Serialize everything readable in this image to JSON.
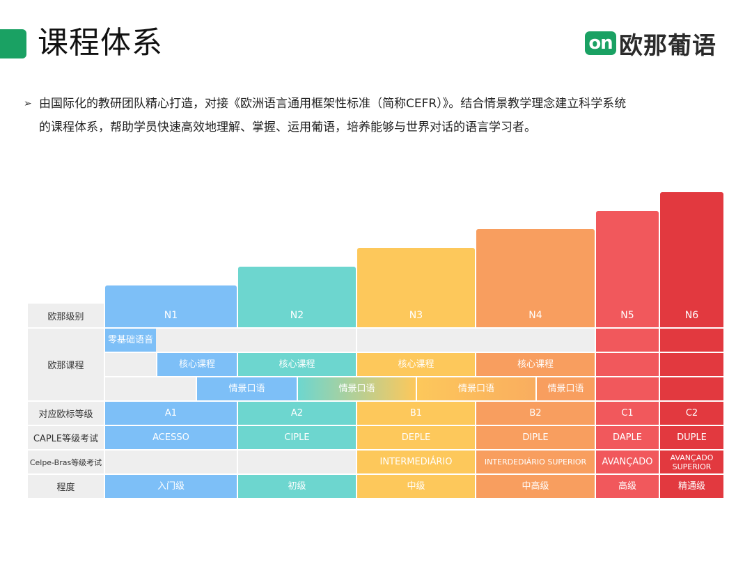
{
  "header": {
    "title": "课程体系",
    "logo_mark": "on",
    "logo_text": "欧那葡语"
  },
  "intro": {
    "arrow": "➢",
    "line1": "由国际化的教研团队精心打造，对接《欧洲语言通用框架性标准（简称CEFR）》。结合情景教学理念建立科学系统",
    "line2": "的课程体系，帮助学员快速高效地理解、掌握、运用葡语，培养能够与世界对话的语言学习者。"
  },
  "table": {
    "row_labels": {
      "level": "欧那级别",
      "course": "欧那课程",
      "cefr": "对应欧标等级",
      "caple": "CAPLE等级考试",
      "celpe": "Celpe-Bras等级考试",
      "degree": "程度"
    },
    "levels": [
      "N1",
      "N2",
      "N3",
      "N4",
      "N5",
      "N6"
    ],
    "courses": {
      "zero_basic": "零基础语音",
      "core": [
        "核心课程",
        "核心课程",
        "核心课程",
        "核心课程"
      ],
      "scene": [
        "情景口语",
        "情景口语",
        "情景口语",
        "情景口语"
      ]
    },
    "cefr": [
      "A1",
      "A2",
      "B1",
      "B2",
      "C1",
      "C2"
    ],
    "caple": [
      "ACESSO",
      "CIPLE",
      "DEPLE",
      "DIPLE",
      "DAPLE",
      "DUPLE"
    ],
    "celpe": [
      "INTERMEDIÁRIO",
      "INTERDEDIÁRIO SUPERIOR",
      "AVANÇADO",
      "AVANÇADO SUPERIOR"
    ],
    "degree": [
      "入门级",
      "初级",
      "中级",
      "中高级",
      "高级",
      "精通级"
    ]
  },
  "colors": {
    "brand_green": "#1aa163",
    "n1": "#7dbff7",
    "n2": "#6dd6cf",
    "n3": "#fdc85b",
    "n4": "#f89e5f",
    "n5": "#f1585c",
    "n6": "#e2393f",
    "row_label_bg": "#eeeeee"
  }
}
